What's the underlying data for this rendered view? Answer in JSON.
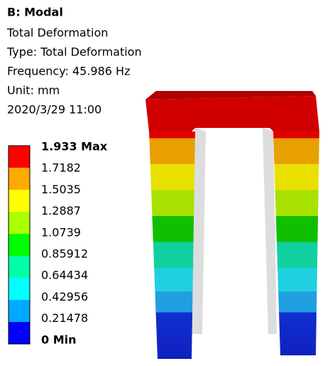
{
  "header": {
    "title": "B: Modal",
    "lines": [
      "Total Deformation",
      "Type: Total Deformation",
      "Frequency: 45.986 Hz",
      "Unit: mm",
      "2020/3/29 11:00"
    ]
  },
  "legend": {
    "labels": [
      "1.933 Max",
      "1.7182",
      "1.5035",
      "1.2887",
      "1.0739",
      "0.85912",
      "0.64434",
      "0.42956",
      "0.21478",
      "0 Min"
    ]
  }
}
